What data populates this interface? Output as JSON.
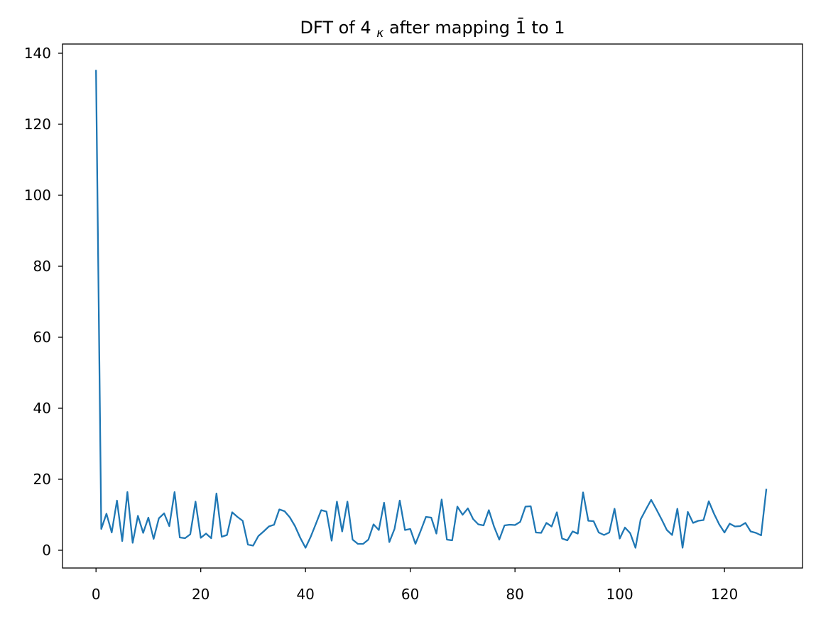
{
  "figure": {
    "background": "#ffffff"
  },
  "chart_data": {
    "type": "line",
    "title": {
      "prefix": "DFT of 4",
      "subscript": "κ",
      "suffix": " after mapping 1̄ to 1",
      "full": "DFT of 4κ after mapping 1̄ to 1"
    },
    "xlabel": "",
    "ylabel": "",
    "x_range": [
      0,
      128
    ],
    "x_description": "DFT bin index k = 0..128, one point per integer",
    "values": [
      135.3,
      6.0,
      10.3,
      5.0,
      14.0,
      2.6,
      16.4,
      2.1,
      9.7,
      4.9,
      9.2,
      3.2,
      9.0,
      10.4,
      6.8,
      16.4,
      3.6,
      3.4,
      4.5,
      13.7,
      3.5,
      4.7,
      3.4,
      16.0,
      3.8,
      4.3,
      10.7,
      9.4,
      8.3,
      1.6,
      1.3,
      4.0,
      5.3,
      6.7,
      7.2,
      11.5,
      11.0,
      9.3,
      6.8,
      3.5,
      0.7,
      3.8,
      7.5,
      11.3,
      10.9,
      2.7,
      13.7,
      5.3,
      13.7,
      3.0,
      1.8,
      1.8,
      3.0,
      7.3,
      5.7,
      13.4,
      2.3,
      6.0,
      14.0,
      5.7,
      6.0,
      1.8,
      5.5,
      9.4,
      9.2,
      4.7,
      14.3,
      3.0,
      2.8,
      12.3,
      10.0,
      11.8,
      8.8,
      7.3,
      7.0,
      11.3,
      6.7,
      3.0,
      7.0,
      7.2,
      7.1,
      8.0,
      12.3,
      12.4,
      5.0,
      4.9,
      7.7,
      6.7,
      10.7,
      3.3,
      2.8,
      5.3,
      4.7,
      16.3,
      8.3,
      8.2,
      5.0,
      4.3,
      5.0,
      11.7,
      3.3,
      6.4,
      4.8,
      0.7,
      8.7,
      11.5,
      14.2,
      11.5,
      8.7,
      5.7,
      4.3,
      11.7,
      0.7,
      10.8,
      7.7,
      8.3,
      8.5,
      13.8,
      10.3,
      7.3,
      5.0,
      7.5,
      6.7,
      6.8,
      7.7,
      5.3,
      4.9,
      4.2,
      17.3
    ],
    "xticks": [
      0,
      20,
      40,
      60,
      80,
      100,
      120
    ],
    "yticks": [
      0,
      20,
      40,
      60,
      80,
      100,
      120,
      140
    ],
    "xlim": [
      -6.4,
      134.9
    ],
    "ylim": [
      -5,
      142.6
    ],
    "line_color": "#1f77b4",
    "axis_color": "#000000",
    "grid": false,
    "legend": "none"
  }
}
